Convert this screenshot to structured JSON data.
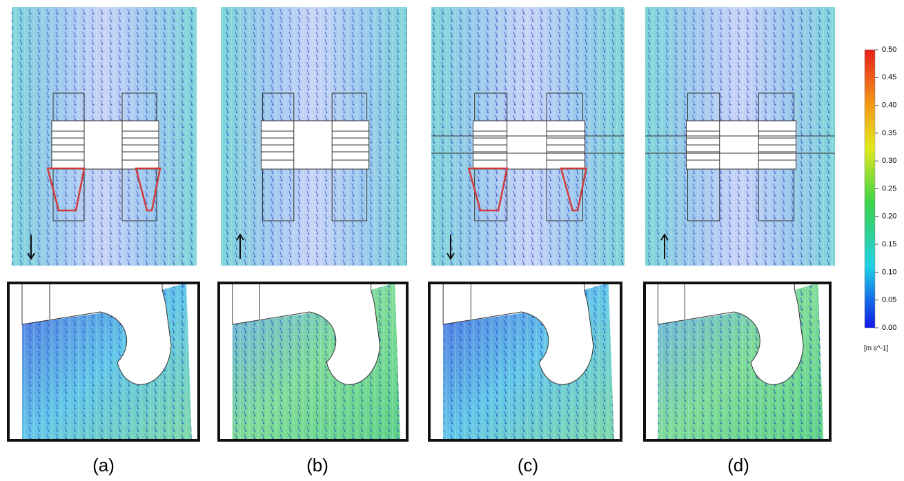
{
  "panels": [
    {
      "label": "(a)"
    },
    {
      "label": "(b)"
    },
    {
      "label": "(c)"
    },
    {
      "label": "(d)"
    }
  ],
  "colorbar": {
    "ticks": [
      {
        "value": 0.5,
        "label": "0.50"
      },
      {
        "value": 0.45,
        "label": "0.45"
      },
      {
        "value": 0.4,
        "label": "0.40"
      },
      {
        "value": 0.35,
        "label": "0.35"
      },
      {
        "value": 0.3,
        "label": "0.30"
      },
      {
        "value": 0.25,
        "label": "0.25"
      },
      {
        "value": 0.2,
        "label": "0.20"
      },
      {
        "value": 0.15,
        "label": "0.15"
      },
      {
        "value": 0.1,
        "label": "0.10"
      },
      {
        "value": 0.05,
        "label": "0.05"
      },
      {
        "value": 0,
        "label": "0.00"
      }
    ],
    "unit": "[m s^-1]"
  }
}
